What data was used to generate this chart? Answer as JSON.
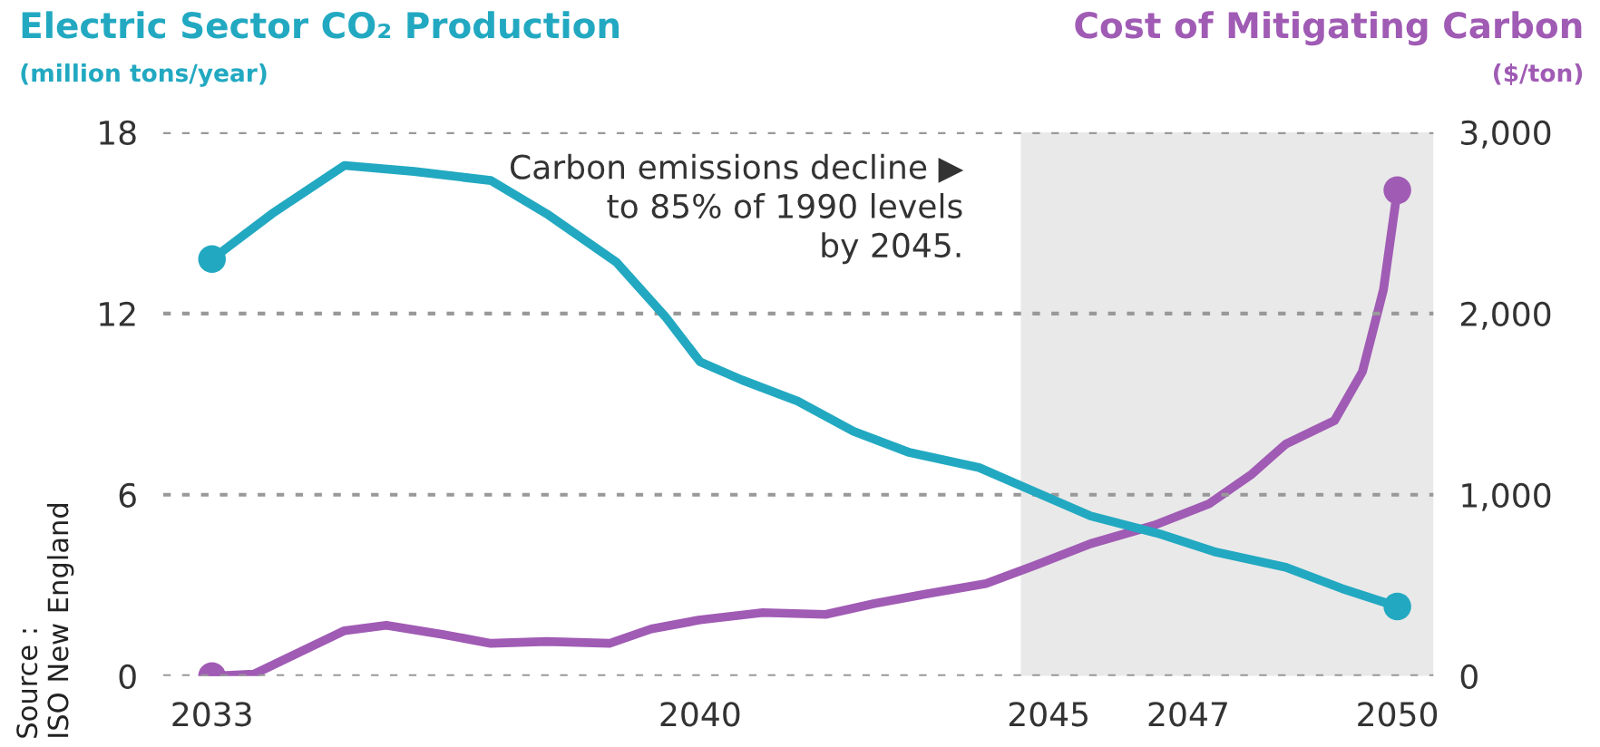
{
  "chart_data": {
    "type": "line",
    "ylabel": "Electric Sector CO₂ Production\n(million tons/year)",
    "y2label": "Cost of Mitigating Carbon\n($/ton)",
    "annotations": [
      "Carbon emissions decline ▶\nto 85% of 1990 levels\nby 2045.",
      "Source :\nISO New England"
    ],
    "series": [
      {
        "name": null,
        "color": "#22a9c1",
        "x": [
          2033,
          2033.86,
          2034.9,
          2035.9,
          2037.0,
          2037.8,
          2038.8,
          2039.5,
          2040.0,
          2040.6,
          2041.4,
          2042.2,
          2043.0,
          2044.0,
          2044.7,
          2045.6,
          2046.6,
          2047.4,
          2048.4,
          2049.2,
          2050
        ],
        "values": [
          13.8,
          15.3,
          16.9,
          16.7,
          16.4,
          15.3,
          13.7,
          11.9,
          10.4,
          9.8,
          9.1,
          8.1,
          7.4,
          6.9,
          6.2,
          5.3,
          4.7,
          4.1,
          3.6,
          2.9,
          2.3
        ]
      },
      {
        "name": null,
        "color": "#a05bb4",
        "axis": "y2",
        "x": [
          2033,
          2033.6,
          2034.25,
          2034.9,
          2035.5,
          2036.3,
          2037.0,
          2037.8,
          2038.7,
          2039.3,
          2040.0,
          2040.9,
          2041.8,
          2042.5,
          2043.2,
          2044.1,
          2044.8,
          2045.6,
          2046.5,
          2047.3,
          2047.9,
          2048.4,
          2049.1,
          2049.5,
          2049.8,
          2050
        ],
        "values": [
          0,
          10,
          130,
          250,
          280,
          230,
          180,
          190,
          180,
          260,
          310,
          350,
          340,
          400,
          450,
          510,
          610,
          730,
          830,
          950,
          1110,
          1280,
          1410,
          1680,
          2130,
          2680
        ]
      }
    ],
    "xlim": [
      2032.3,
      2050.52
    ],
    "xticks": [
      2033,
      2040,
      2045,
      2047,
      2050
    ],
    "ylim": [
      0,
      18
    ],
    "yticks": [
      0,
      6,
      12,
      18
    ],
    "y2lim": [
      0,
      3000
    ],
    "y2ticks": [
      {
        "value": 0,
        "label": "0"
      },
      {
        "value": 1000,
        "label": "1,000"
      },
      {
        "value": 2000,
        "label": "2,000"
      },
      {
        "value": 3000,
        "label": "3,000"
      }
    ],
    "bands": [
      {
        "axis": "x",
        "from": 2044.6,
        "to": 2050.52,
        "color": "#e9e9e9"
      }
    ],
    "grid": "y",
    "line_style": "solid",
    "legend": false
  }
}
